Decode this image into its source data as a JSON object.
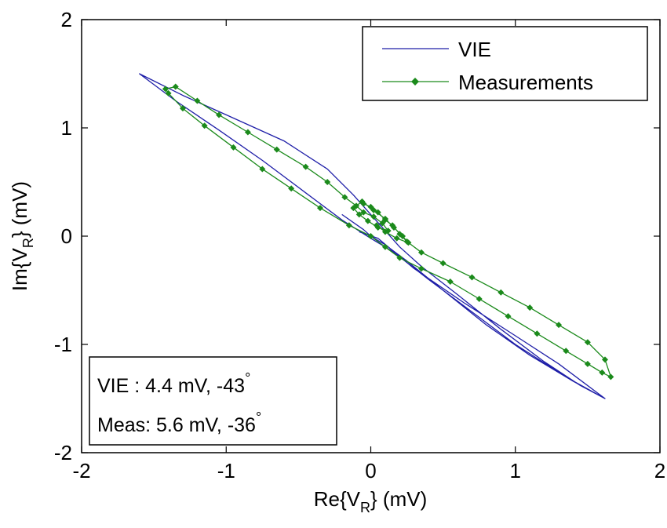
{
  "chart_data": {
    "type": "line",
    "title": "",
    "xlabel": {
      "prefix": "Re{V",
      "sub": "R",
      "suffix": "} (mV)"
    },
    "ylabel": {
      "prefix": "Im{V",
      "sub": "R",
      "suffix": "} (mV)"
    },
    "xlim": [
      -2,
      2
    ],
    "ylim": [
      -2,
      2
    ],
    "xticks": [
      "-2",
      "-1",
      "0",
      "1",
      "2"
    ],
    "yticks": [
      "2",
      "1",
      "0",
      "-1",
      "-2"
    ],
    "grid": false,
    "legend_position": "top-right",
    "series": [
      {
        "name": "VIE",
        "color": "#1f1fa8",
        "marker": "none",
        "points": [
          [
            -0.2,
            0.2
          ],
          [
            -0.05,
            0.06
          ],
          [
            0.0,
            0.0
          ],
          [
            0.1,
            -0.08
          ],
          [
            0.25,
            -0.23
          ],
          [
            0.5,
            -0.5
          ],
          [
            0.8,
            -0.82
          ],
          [
            1.1,
            -1.1
          ],
          [
            1.4,
            -1.34
          ],
          [
            1.62,
            -1.5
          ],
          [
            1.35,
            -1.3
          ],
          [
            1.0,
            -1.0
          ],
          [
            0.7,
            -0.7
          ],
          [
            0.4,
            -0.4
          ],
          [
            0.15,
            -0.14
          ],
          [
            0.0,
            -0.02
          ],
          [
            -0.2,
            0.15
          ],
          [
            -0.45,
            0.4
          ],
          [
            -0.75,
            0.7
          ],
          [
            -1.05,
            0.98
          ],
          [
            -1.35,
            1.25
          ],
          [
            -1.6,
            1.5
          ],
          [
            -1.3,
            1.3
          ],
          [
            -1.0,
            1.12
          ],
          [
            -0.6,
            0.88
          ],
          [
            -0.3,
            0.62
          ],
          [
            -0.12,
            0.38
          ],
          [
            0.0,
            0.2
          ],
          [
            0.1,
            0.05
          ],
          [
            0.2,
            -0.1
          ],
          [
            0.35,
            -0.28
          ],
          [
            0.6,
            -0.54
          ],
          [
            0.9,
            -0.86
          ],
          [
            1.2,
            -1.16
          ],
          [
            1.45,
            -1.38
          ],
          [
            1.62,
            -1.5
          ],
          [
            1.3,
            -1.18
          ],
          [
            1.0,
            -0.92
          ],
          [
            0.65,
            -0.62
          ],
          [
            0.3,
            -0.3
          ],
          [
            0.05,
            -0.02
          ],
          [
            -0.08,
            0.04
          ]
        ]
      },
      {
        "name": "Measurements",
        "color": "#1b8a1b",
        "marker": "diamond",
        "points": [
          [
            -0.05,
            0.3
          ],
          [
            0.0,
            0.27
          ],
          [
            0.05,
            0.22
          ],
          [
            0.1,
            0.15
          ],
          [
            0.15,
            0.1
          ],
          [
            0.2,
            0.02
          ],
          [
            0.25,
            -0.05
          ],
          [
            0.35,
            -0.15
          ],
          [
            0.5,
            -0.25
          ],
          [
            0.7,
            -0.38
          ],
          [
            0.9,
            -0.52
          ],
          [
            1.1,
            -0.66
          ],
          [
            1.3,
            -0.82
          ],
          [
            1.5,
            -0.98
          ],
          [
            1.62,
            -1.14
          ],
          [
            1.66,
            -1.3
          ],
          [
            1.6,
            -1.26
          ],
          [
            1.5,
            -1.18
          ],
          [
            1.35,
            -1.06
          ],
          [
            1.15,
            -0.9
          ],
          [
            0.95,
            -0.74
          ],
          [
            0.75,
            -0.58
          ],
          [
            0.55,
            -0.42
          ],
          [
            0.35,
            -0.3
          ],
          [
            0.2,
            -0.2
          ],
          [
            0.1,
            -0.1
          ],
          [
            0.0,
            0.0
          ],
          [
            -0.15,
            0.1
          ],
          [
            -0.35,
            0.26
          ],
          [
            -0.55,
            0.44
          ],
          [
            -0.75,
            0.62
          ],
          [
            -0.95,
            0.82
          ],
          [
            -1.15,
            1.02
          ],
          [
            -1.3,
            1.18
          ],
          [
            -1.4,
            1.32
          ],
          [
            -1.42,
            1.36
          ],
          [
            -1.35,
            1.38
          ],
          [
            -1.2,
            1.25
          ],
          [
            -1.05,
            1.12
          ],
          [
            -0.85,
            0.96
          ],
          [
            -0.65,
            0.8
          ],
          [
            -0.45,
            0.64
          ],
          [
            -0.3,
            0.5
          ],
          [
            -0.18,
            0.36
          ],
          [
            -0.1,
            0.28
          ],
          [
            -0.05,
            0.22
          ],
          [
            0.02,
            0.18
          ],
          [
            0.08,
            0.12
          ],
          [
            0.12,
            0.05
          ],
          [
            0.05,
            0.08
          ],
          [
            -0.02,
            0.14
          ],
          [
            -0.08,
            0.2
          ],
          [
            -0.12,
            0.26
          ],
          [
            -0.06,
            0.32
          ],
          [
            0.02,
            0.24
          ],
          [
            0.1,
            0.16
          ],
          [
            0.16,
            0.08
          ],
          [
            0.22,
            0.0
          ],
          [
            0.26,
            -0.06
          ],
          [
            0.18,
            -0.02
          ],
          [
            0.1,
            0.04
          ],
          [
            0.04,
            0.1
          ]
        ]
      }
    ],
    "annotation": {
      "lines": [
        {
          "text": "VIE : 4.4 mV, -43",
          "degree": "°"
        },
        {
          "text": "Meas: 5.6 mV, -36",
          "degree": "°"
        }
      ],
      "position": "bottom-left"
    }
  }
}
